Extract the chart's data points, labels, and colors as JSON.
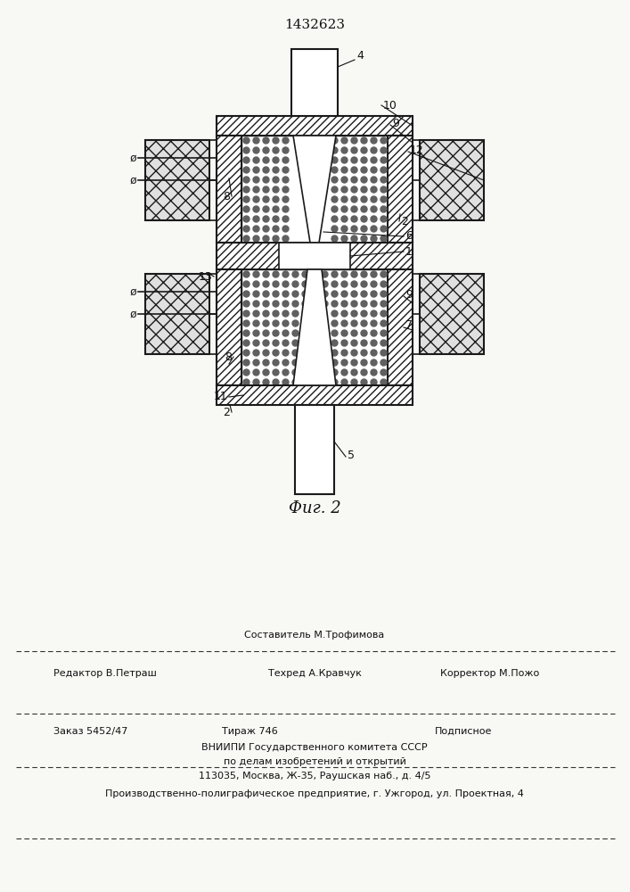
{
  "patent_number": "1432623",
  "fig_label": "Фиг. 2",
  "bg_color": "#f8f8f5",
  "line_color": "#1a1a1a",
  "footer": {
    "sostavitel": "Составитель М.Трофимова",
    "redaktor": "Редактор В.Петраш",
    "tehred": "Техред А.Кравчук",
    "korrektor": "Корректор М.Пожо",
    "zakaz": "Заказ 5452/47",
    "tirazh": "Тираж 746",
    "podpisnoe": "Подписное",
    "vniiipi": "ВНИИПИ Государственного комитета СССР",
    "po_delam": "по делам изобретений и открытий",
    "address": "113035, Москва, Ж-35, Раушская наб., д. 4/5",
    "proizv": "Производственно-полиграфическое предприятие, г. Ужгород, ул. Проектная, 4"
  }
}
